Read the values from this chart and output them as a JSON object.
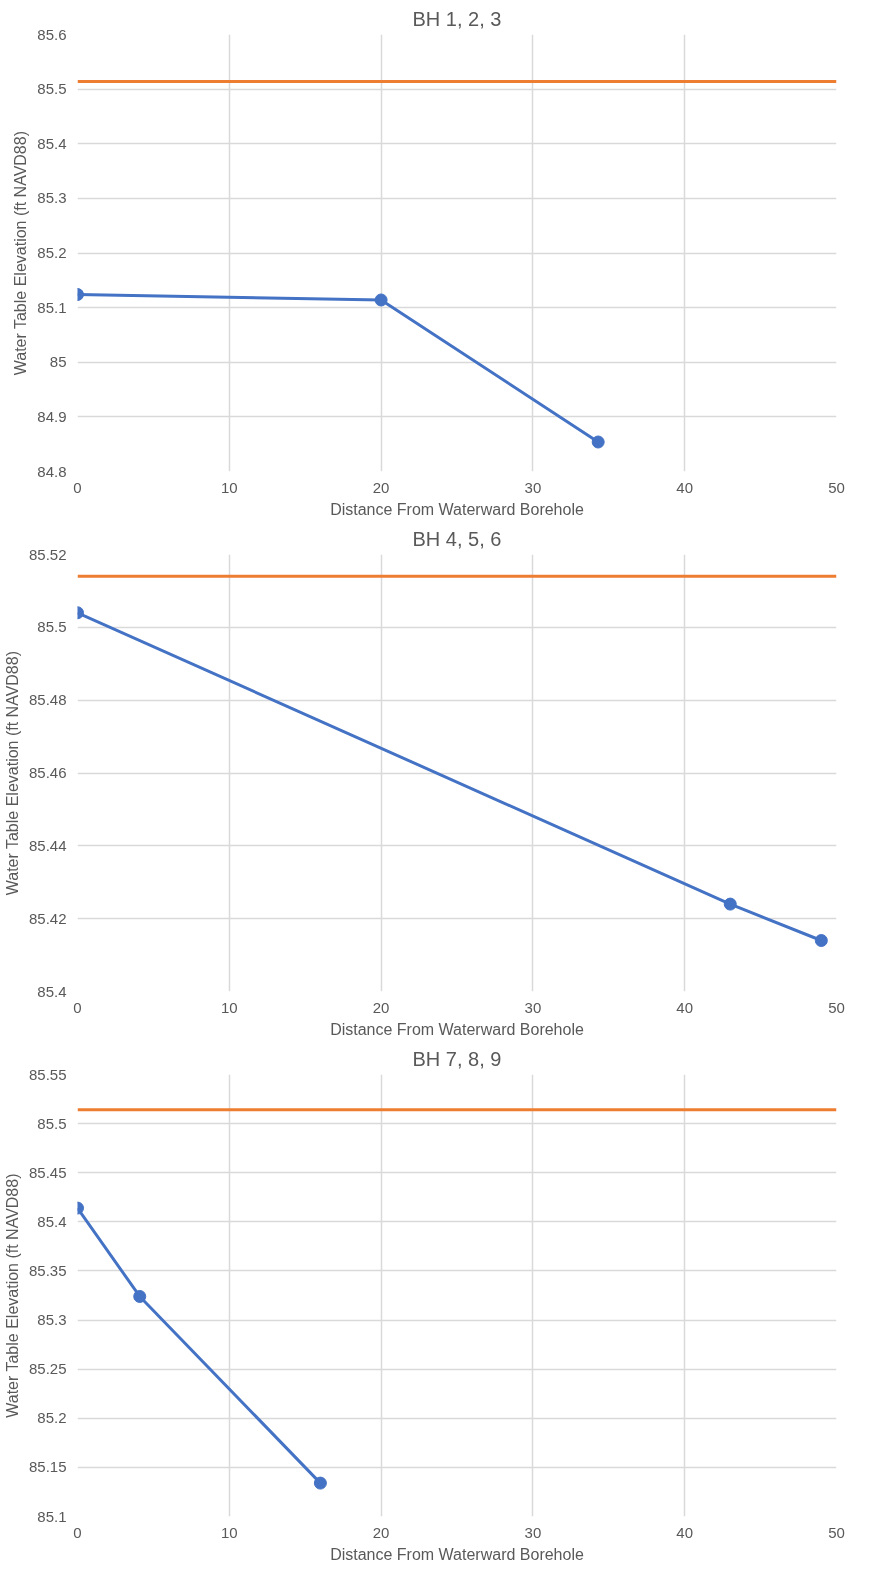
{
  "chart_data": [
    {
      "type": "line",
      "title": "BH 1, 2, 3",
      "xlabel": "Distance From Waterward Borehole",
      "ylabel": "Water Table Elevation (ft NAVD88)",
      "x": [
        0,
        20,
        34.3
      ],
      "series": [
        {
          "color": "#4472c4",
          "values": [
            85.124,
            85.114,
            84.854
          ]
        }
      ],
      "marker": "circle",
      "xlim": [
        0,
        50
      ],
      "xticks": [
        0,
        10,
        20,
        30,
        40,
        50
      ],
      "ylim": [
        84.8,
        85.6
      ],
      "yticks": [
        84.8,
        84.9,
        {
          "value": 85,
          "label": "85"
        },
        85.1,
        85.2,
        85.3,
        85.4,
        85.5,
        85.6
      ],
      "grid": true,
      "ref_lines": [
        {
          "axis": "y",
          "value": 85.514,
          "color": "#ed7d31"
        }
      ]
    },
    {
      "type": "line",
      "title": "BH 4, 5, 6",
      "xlabel": "Distance From Waterward Borehole",
      "ylabel": "Water Table Elevation (ft NAVD88)",
      "x": [
        0,
        43,
        49
      ],
      "series": [
        {
          "color": "#4472c4",
          "values": [
            85.504,
            85.424,
            85.414
          ]
        }
      ],
      "marker": "circle",
      "xlim": [
        0,
        50
      ],
      "xticks": [
        0,
        10,
        20,
        30,
        40,
        50
      ],
      "ylim": [
        85.4,
        85.52
      ],
      "yticks": [
        85.4,
        85.42,
        85.44,
        85.46,
        85.48,
        85.5,
        85.52
      ],
      "grid": true,
      "ref_lines": [
        {
          "axis": "y",
          "value": 85.514,
          "color": "#ed7d31"
        }
      ]
    },
    {
      "type": "line",
      "title": "BH 7, 8, 9",
      "xlabel": "Distance From Waterward Borehole",
      "ylabel": "Water Table Elevation (ft NAVD88)",
      "x": [
        0,
        4.1,
        16
      ],
      "series": [
        {
          "color": "#4472c4",
          "values": [
            85.414,
            85.324,
            85.134
          ]
        }
      ],
      "marker": "circle",
      "xlim": [
        0,
        50
      ],
      "xticks": [
        0,
        10,
        20,
        30,
        40,
        50
      ],
      "ylim": [
        85.1,
        85.55
      ],
      "yticks": [
        85.1,
        85.15,
        85.2,
        85.25,
        85.3,
        85.35,
        85.4,
        85.45,
        85.5,
        85.55
      ],
      "grid": true,
      "ref_lines": [
        {
          "axis": "y",
          "value": 85.514,
          "color": "#ed7d31"
        }
      ]
    }
  ]
}
